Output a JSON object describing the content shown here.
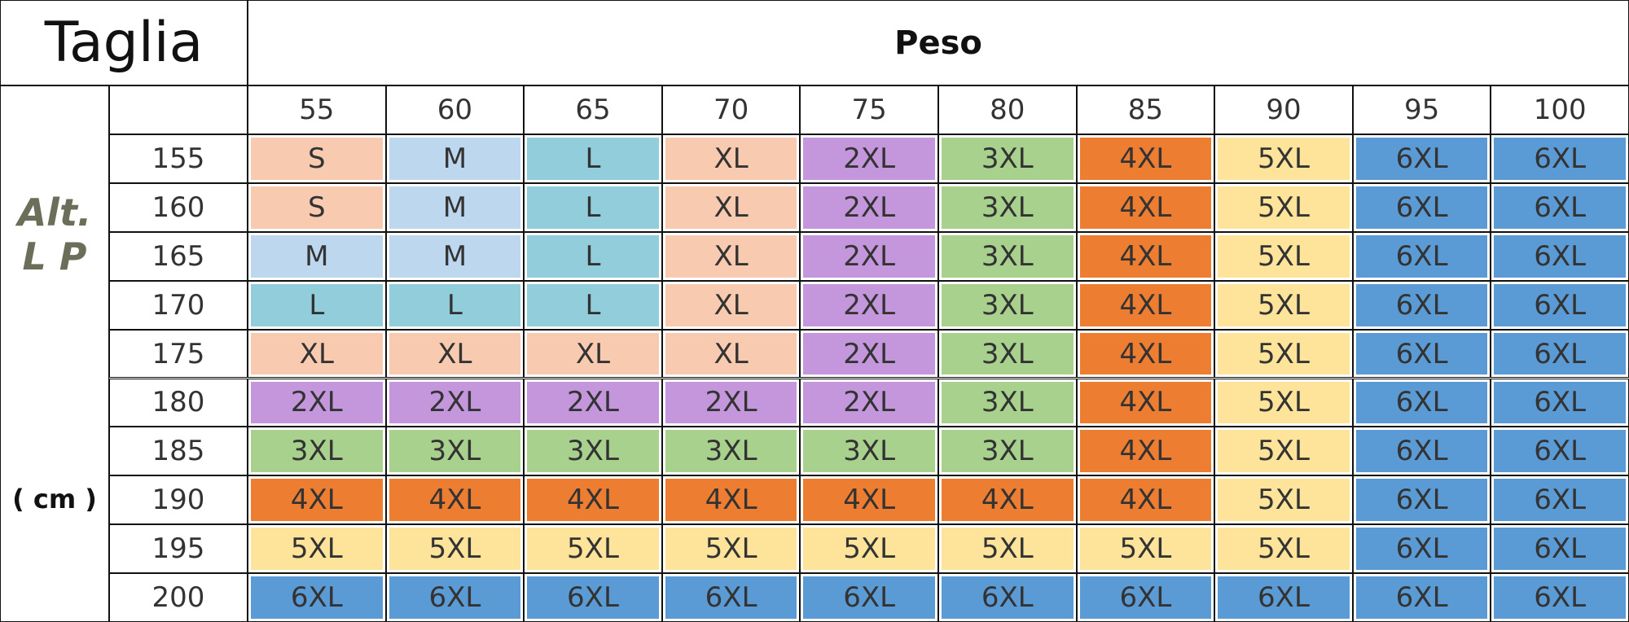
{
  "header": {
    "title": "Taglia",
    "weight_label": "Peso"
  },
  "side_label": {
    "lines": [
      "Alt.",
      "L P"
    ],
    "unit": "( cm )"
  },
  "weights": [
    55,
    60,
    65,
    70,
    75,
    80,
    85,
    90,
    95,
    100
  ],
  "rows": [
    {
      "height": 155,
      "sizes": [
        "S",
        "M",
        "L",
        "XL",
        "2XL",
        "3XL",
        "4XL",
        "5XL",
        "6XL",
        "6XL"
      ],
      "colors": [
        "#f8cbb0",
        "#bdd7ee",
        "#92cddc",
        "#f8cbb0",
        "#c497dc",
        "#a9d18e",
        "#ed7d31",
        "#fde49a",
        "#5b9bd5",
        "#5b9bd5"
      ]
    },
    {
      "height": 160,
      "sizes": [
        "S",
        "M",
        "L",
        "XL",
        "2XL",
        "3XL",
        "4XL",
        "5XL",
        "6XL",
        "6XL"
      ],
      "colors": [
        "#f8cbb0",
        "#bdd7ee",
        "#92cddc",
        "#f8cbb0",
        "#c497dc",
        "#a9d18e",
        "#ed7d31",
        "#fde49a",
        "#5b9bd5",
        "#5b9bd5"
      ]
    },
    {
      "height": 165,
      "sizes": [
        "M",
        "M",
        "L",
        "XL",
        "2XL",
        "3XL",
        "4XL",
        "5XL",
        "6XL",
        "6XL"
      ],
      "colors": [
        "#bdd7ee",
        "#bdd7ee",
        "#92cddc",
        "#f8cbb0",
        "#c497dc",
        "#a9d18e",
        "#ed7d31",
        "#fde49a",
        "#5b9bd5",
        "#5b9bd5"
      ]
    },
    {
      "height": 170,
      "sizes": [
        "L",
        "L",
        "L",
        "XL",
        "2XL",
        "3XL",
        "4XL",
        "5XL",
        "6XL",
        "6XL"
      ],
      "colors": [
        "#92cddc",
        "#92cddc",
        "#92cddc",
        "#f8cbb0",
        "#c497dc",
        "#a9d18e",
        "#ed7d31",
        "#fde49a",
        "#5b9bd5",
        "#5b9bd5"
      ]
    },
    {
      "height": 175,
      "sizes": [
        "XL",
        "XL",
        "XL",
        "XL",
        "2XL",
        "3XL",
        "4XL",
        "5XL",
        "6XL",
        "6XL"
      ],
      "colors": [
        "#f8cbb0",
        "#f8cbb0",
        "#f8cbb0",
        "#f8cbb0",
        "#c497dc",
        "#a9d18e",
        "#ed7d31",
        "#fde49a",
        "#5b9bd5",
        "#5b9bd5"
      ]
    },
    {
      "height": 180,
      "sizes": [
        "2XL",
        "2XL",
        "2XL",
        "2XL",
        "2XL",
        "3XL",
        "4XL",
        "5XL",
        "6XL",
        "6XL"
      ],
      "colors": [
        "#c497dc",
        "#c497dc",
        "#c497dc",
        "#c497dc",
        "#c497dc",
        "#a9d18e",
        "#ed7d31",
        "#fde49a",
        "#5b9bd5",
        "#5b9bd5"
      ]
    },
    {
      "height": 185,
      "sizes": [
        "3XL",
        "3XL",
        "3XL",
        "3XL",
        "3XL",
        "3XL",
        "4XL",
        "5XL",
        "6XL",
        "6XL"
      ],
      "colors": [
        "#a9d18e",
        "#a9d18e",
        "#a9d18e",
        "#a9d18e",
        "#a9d18e",
        "#a9d18e",
        "#ed7d31",
        "#fde49a",
        "#5b9bd5",
        "#5b9bd5"
      ]
    },
    {
      "height": 190,
      "sizes": [
        "4XL",
        "4XL",
        "4XL",
        "4XL",
        "4XL",
        "4XL",
        "4XL",
        "5XL",
        "6XL",
        "6XL"
      ],
      "colors": [
        "#ed7d31",
        "#ed7d31",
        "#ed7d31",
        "#ed7d31",
        "#ed7d31",
        "#ed7d31",
        "#ed7d31",
        "#fde49a",
        "#5b9bd5",
        "#5b9bd5"
      ]
    },
    {
      "height": 195,
      "sizes": [
        "5XL",
        "5XL",
        "5XL",
        "5XL",
        "5XL",
        "5XL",
        "5XL",
        "5XL",
        "6XL",
        "6XL"
      ],
      "colors": [
        "#fde49a",
        "#fde49a",
        "#fde49a",
        "#fde49a",
        "#fde49a",
        "#fde49a",
        "#fde49a",
        "#fde49a",
        "#5b9bd5",
        "#5b9bd5"
      ]
    },
    {
      "height": 200,
      "sizes": [
        "6XL",
        "6XL",
        "6XL",
        "6XL",
        "6XL",
        "6XL",
        "6XL",
        "6XL",
        "6XL",
        "6XL"
      ],
      "colors": [
        "#5b9bd5",
        "#5b9bd5",
        "#5b9bd5",
        "#5b9bd5",
        "#5b9bd5",
        "#5b9bd5",
        "#5b9bd5",
        "#5b9bd5",
        "#5b9bd5",
        "#5b9bd5"
      ]
    }
  ]
}
